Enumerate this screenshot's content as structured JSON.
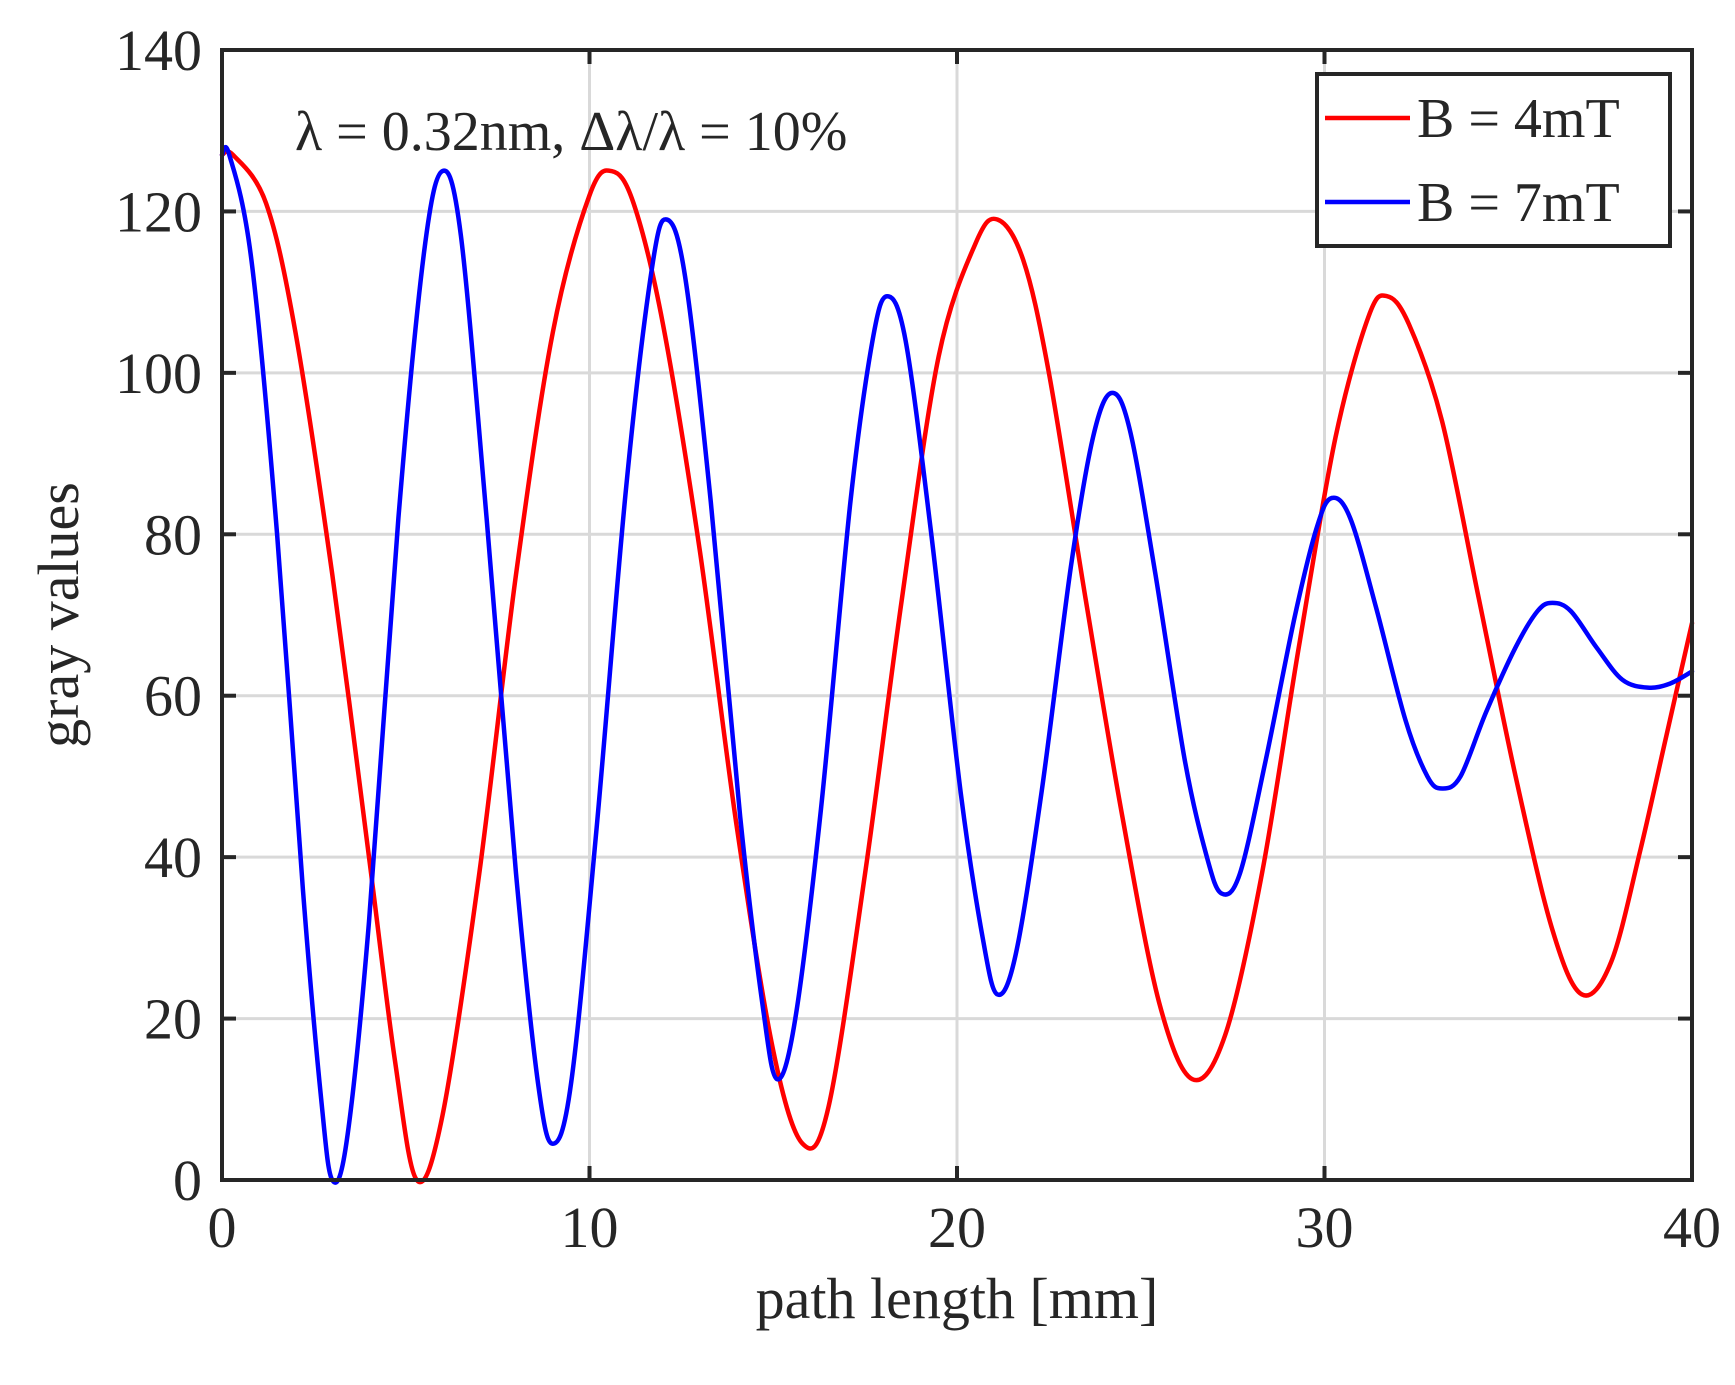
{
  "chart_data": {
    "type": "line",
    "title": "",
    "xlabel": "path length [mm]",
    "ylabel": "gray values",
    "xlim": [
      0,
      40
    ],
    "ylim": [
      0,
      140
    ],
    "xticks": [
      0,
      10,
      20,
      30,
      40
    ],
    "yticks": [
      0,
      20,
      40,
      60,
      80,
      100,
      120,
      140
    ],
    "grid": true,
    "annotation": "λ =  0.32nm, Δλ/λ = 10%",
    "legend_position": "top-right",
    "series": [
      {
        "name": "B = 4mT",
        "color": "#ff0000",
        "x": [
          0,
          0.3,
          5.3,
          10.6,
          15.8,
          21.1,
          26.4,
          31.7,
          37.0,
          40.0
        ],
        "y": [
          127,
          127,
          0,
          125,
          4.5,
          119,
          12.5,
          109.5,
          23,
          69
        ],
        "points": [
          [
            0,
            127
          ],
          [
            0.3,
            127
          ],
          [
            1.2,
            121
          ],
          [
            2.0,
            105
          ],
          [
            3.0,
            75
          ],
          [
            4.0,
            40
          ],
          [
            4.7,
            15
          ],
          [
            5.3,
            0
          ],
          [
            6.0,
            8
          ],
          [
            7.0,
            38
          ],
          [
            8.0,
            75
          ],
          [
            9.0,
            105
          ],
          [
            10.0,
            122
          ],
          [
            10.6,
            125
          ],
          [
            11.2,
            121
          ],
          [
            12.0,
            106
          ],
          [
            13.0,
            78
          ],
          [
            14.0,
            44
          ],
          [
            15.0,
            16
          ],
          [
            15.8,
            4.5
          ],
          [
            16.5,
            9
          ],
          [
            17.5,
            38
          ],
          [
            18.5,
            72
          ],
          [
            19.5,
            102
          ],
          [
            20.5,
            116
          ],
          [
            21.1,
            119
          ],
          [
            21.8,
            114
          ],
          [
            22.5,
            100
          ],
          [
            23.5,
            72
          ],
          [
            24.5,
            45
          ],
          [
            25.5,
            22
          ],
          [
            26.4,
            12.5
          ],
          [
            27.3,
            18
          ],
          [
            28.3,
            38
          ],
          [
            29.3,
            66
          ],
          [
            30.3,
            92
          ],
          [
            31.2,
            107
          ],
          [
            31.7,
            109.5
          ],
          [
            32.3,
            106
          ],
          [
            33.2,
            94
          ],
          [
            34.2,
            72
          ],
          [
            35.2,
            50
          ],
          [
            36.2,
            31
          ],
          [
            37.0,
            23
          ],
          [
            37.8,
            27
          ],
          [
            38.6,
            41
          ],
          [
            39.3,
            55
          ],
          [
            40.0,
            69
          ]
        ]
      },
      {
        "name": "B = 7mT",
        "color": "#0000ff",
        "x": [
          0,
          3.0,
          6.0,
          9.0,
          12.1,
          15.1,
          18.1,
          21.1,
          24.2,
          27.2,
          30.2,
          33.2,
          36.2,
          38.8,
          40.0
        ],
        "y": [
          127,
          0,
          125,
          4.5,
          119,
          12.5,
          109.5,
          23,
          97.5,
          35.5,
          84.5,
          48.5,
          71.5,
          61,
          63
        ],
        "points": [
          [
            0,
            127
          ],
          [
            0.2,
            127
          ],
          [
            0.8,
            114
          ],
          [
            1.5,
            80
          ],
          [
            2.2,
            36
          ],
          [
            2.7,
            10
          ],
          [
            3.0,
            0
          ],
          [
            3.4,
            5
          ],
          [
            4.0,
            32
          ],
          [
            4.8,
            82
          ],
          [
            5.5,
            115
          ],
          [
            6.0,
            125
          ],
          [
            6.5,
            117
          ],
          [
            7.2,
            82
          ],
          [
            8.0,
            38
          ],
          [
            8.6,
            12
          ],
          [
            9.0,
            4.5
          ],
          [
            9.5,
            12
          ],
          [
            10.2,
            44
          ],
          [
            11.0,
            86
          ],
          [
            11.7,
            113
          ],
          [
            12.1,
            119
          ],
          [
            12.6,
            112
          ],
          [
            13.3,
            84
          ],
          [
            14.1,
            45
          ],
          [
            14.7,
            22
          ],
          [
            15.1,
            12.5
          ],
          [
            15.6,
            20
          ],
          [
            16.3,
            46
          ],
          [
            17.1,
            84
          ],
          [
            17.7,
            104
          ],
          [
            18.1,
            109.5
          ],
          [
            18.6,
            104
          ],
          [
            19.3,
            80
          ],
          [
            20.1,
            48
          ],
          [
            20.7,
            30
          ],
          [
            21.1,
            23
          ],
          [
            21.6,
            28
          ],
          [
            22.3,
            48
          ],
          [
            23.1,
            76
          ],
          [
            23.7,
            92
          ],
          [
            24.2,
            97.5
          ],
          [
            24.7,
            93
          ],
          [
            25.4,
            75
          ],
          [
            26.2,
            52
          ],
          [
            26.8,
            40
          ],
          [
            27.2,
            35.5
          ],
          [
            27.7,
            38
          ],
          [
            28.4,
            52
          ],
          [
            29.2,
            70
          ],
          [
            29.8,
            81
          ],
          [
            30.2,
            84.5
          ],
          [
            30.7,
            82
          ],
          [
            31.4,
            71
          ],
          [
            32.2,
            57
          ],
          [
            32.8,
            50
          ],
          [
            33.2,
            48.5
          ],
          [
            33.7,
            50
          ],
          [
            34.4,
            58
          ],
          [
            35.2,
            66
          ],
          [
            35.8,
            70.5
          ],
          [
            36.2,
            71.5
          ],
          [
            36.7,
            70.5
          ],
          [
            37.4,
            66
          ],
          [
            38.1,
            62
          ],
          [
            38.8,
            61
          ],
          [
            39.4,
            61.5
          ],
          [
            40.0,
            63
          ]
        ]
      }
    ]
  }
}
